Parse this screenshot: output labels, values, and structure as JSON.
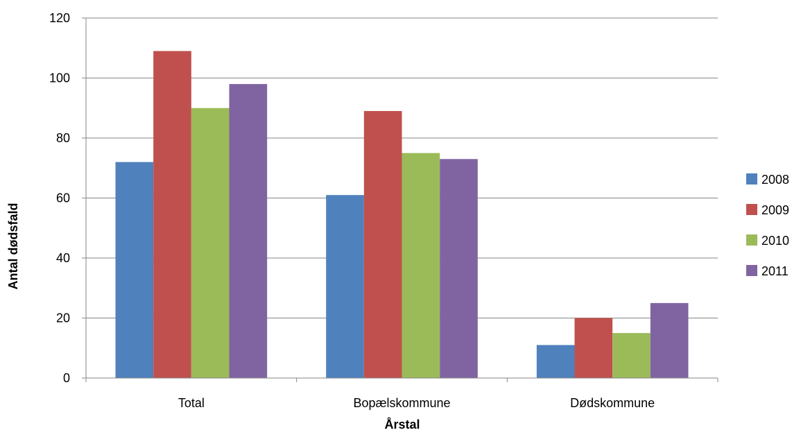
{
  "chart_data": {
    "type": "bar",
    "categories": [
      "Total",
      "Bopælskommune",
      "Dødskommune"
    ],
    "series": [
      {
        "name": "2008",
        "values": [
          72,
          61,
          11
        ],
        "color": "#4F81BD"
      },
      {
        "name": "2009",
        "values": [
          109,
          89,
          20
        ],
        "color": "#C0504D"
      },
      {
        "name": "2010",
        "values": [
          90,
          75,
          15
        ],
        "color": "#9BBB59"
      },
      {
        "name": "2011",
        "values": [
          98,
          73,
          25
        ],
        "color": "#8064A2"
      }
    ],
    "xlabel": "Årstal",
    "ylabel": "Antal dødsfald",
    "ylim": [
      0,
      120
    ],
    "yticks": [
      0,
      20,
      40,
      60,
      80,
      100,
      120
    ],
    "grid": true,
    "legend_position": "right"
  }
}
